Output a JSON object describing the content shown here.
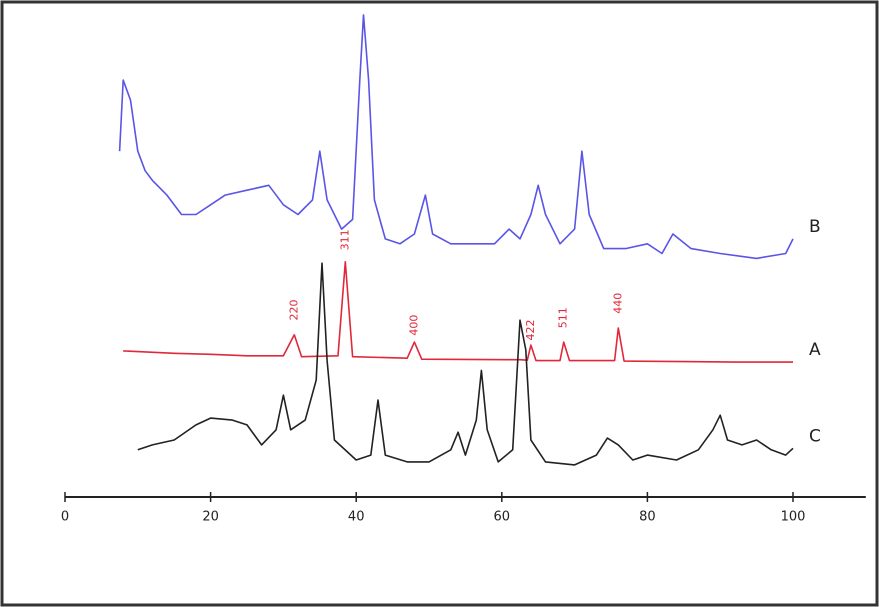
{
  "chart_data": {
    "type": "line",
    "xlim": [
      0,
      110
    ],
    "xticks": [
      0,
      20,
      40,
      60,
      80,
      100
    ],
    "ylim": [
      0,
      100
    ],
    "series": [
      {
        "name": "B",
        "color": "#5a55e6",
        "x": [
          7.5,
          8,
          9,
          10,
          11,
          12,
          14,
          16,
          18,
          20,
          22,
          25,
          28,
          30,
          32,
          34,
          35,
          36,
          38,
          39.5,
          40.5,
          41,
          41.7,
          42.5,
          44,
          46,
          48,
          49.5,
          50.5,
          53,
          56,
          59,
          61,
          62.5,
          64,
          65,
          66,
          68,
          70,
          71,
          72,
          74,
          77,
          80,
          82,
          83.5,
          86,
          90,
          95,
          99,
          100
        ],
        "values": [
          71,
          85.6,
          81.5,
          71,
          67,
          65,
          62,
          58,
          58,
          60,
          62,
          63,
          64,
          60,
          58,
          61,
          71,
          61,
          55,
          57,
          85.6,
          99,
          85.6,
          61,
          53,
          52,
          54,
          62,
          54,
          52,
          52,
          52,
          55,
          53,
          58,
          64,
          58,
          52,
          55,
          71,
          58,
          51,
          51,
          52,
          50,
          54,
          51,
          50,
          49,
          50,
          53
        ]
      },
      {
        "name": "A",
        "color": "#e0283a",
        "x": [
          8,
          15,
          20,
          25,
          30,
          31.5,
          32.5,
          37.5,
          38.5,
          39.5,
          47,
          48,
          49,
          62.5,
          63.5,
          64,
          64.7,
          68,
          68.5,
          69.3,
          75.5,
          76,
          76.8,
          85,
          92,
          100
        ],
        "values": [
          30,
          29.5,
          29.3,
          29,
          29,
          33.3,
          28.8,
          29,
          48.3,
          28.8,
          28.5,
          31.8,
          28.3,
          28.2,
          28.1,
          31.2,
          28,
          28,
          31.8,
          28,
          28,
          34.7,
          27.9,
          27.8,
          27.7,
          27.7
        ]
      },
      {
        "name": "C",
        "color": "#222222",
        "x": [
          10,
          12,
          15,
          18,
          20,
          23,
          25,
          27,
          29,
          30,
          31,
          33,
          34.5,
          35.3,
          36,
          37,
          40,
          42,
          43,
          44,
          47,
          50,
          53,
          54,
          55,
          56.5,
          57.2,
          58,
          59.5,
          61.5,
          62.5,
          63.3,
          64,
          66,
          70,
          73,
          74.5,
          76,
          78,
          80,
          84,
          87,
          89,
          90,
          91,
          93,
          95,
          97,
          99,
          100
        ],
        "values": [
          9.7,
          10.7,
          11.7,
          14.8,
          16.2,
          15.8,
          14.8,
          10.7,
          13.8,
          20.9,
          13.8,
          15.8,
          24,
          48,
          28,
          11.7,
          7.6,
          8.6,
          19.9,
          8.6,
          7.2,
          7.2,
          9.7,
          13.3,
          8.6,
          15.8,
          26,
          13.8,
          7.2,
          9.7,
          36.3,
          30.2,
          11.7,
          7.2,
          6.6,
          8.6,
          12.1,
          10.7,
          7.6,
          8.6,
          7.6,
          9.7,
          13.8,
          16.8,
          11.7,
          10.7,
          11.7,
          9.7,
          8.6,
          10
        ]
      }
    ],
    "annotations": [
      {
        "label": "220",
        "x": 31.5,
        "y": 38.4
      },
      {
        "label": "311",
        "x": 38.5,
        "y": 52.8
      },
      {
        "label": "400",
        "x": 48,
        "y": 35.3
      },
      {
        "label": "422",
        "x": 64,
        "y": 34.3
      },
      {
        "label": "511",
        "x": 68.5,
        "y": 36.8
      },
      {
        "label": "440",
        "x": 76,
        "y": 39.8
      }
    ]
  }
}
